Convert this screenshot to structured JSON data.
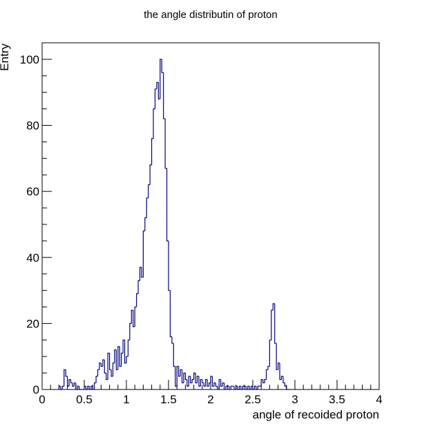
{
  "chart_data": {
    "type": "histogram",
    "title": "the angle distributin of proton",
    "xlabel": "angle of recoided proton",
    "ylabel": "Entry",
    "xlim": [
      0,
      4
    ],
    "ylim": [
      0,
      105
    ],
    "x_ticks": [
      0,
      0.5,
      1,
      1.5,
      2,
      2.5,
      3,
      3.5,
      4
    ],
    "x_tick_labels": [
      "0",
      "0.5",
      "1",
      "1.5",
      "2",
      "2.5",
      "3",
      "3.5",
      "4"
    ],
    "y_ticks": [
      0,
      20,
      40,
      60,
      80,
      100
    ],
    "y_tick_labels": [
      "0",
      "20",
      "40",
      "60",
      "80",
      "100"
    ],
    "grid": false,
    "line_color": "#000080",
    "bin_width": 0.02,
    "bins": [
      [
        0.2,
        0.22,
        1
      ],
      [
        0.22,
        0.24,
        0
      ],
      [
        0.24,
        0.26,
        1
      ],
      [
        0.26,
        0.28,
        6
      ],
      [
        0.28,
        0.3,
        4
      ],
      [
        0.3,
        0.32,
        1
      ],
      [
        0.32,
        0.34,
        3
      ],
      [
        0.34,
        0.36,
        2
      ],
      [
        0.36,
        0.38,
        1
      ],
      [
        0.38,
        0.4,
        2
      ],
      [
        0.4,
        0.42,
        0
      ],
      [
        0.42,
        0.44,
        1
      ],
      [
        0.44,
        0.46,
        0
      ],
      [
        0.46,
        0.48,
        0
      ],
      [
        0.48,
        0.5,
        0
      ],
      [
        0.5,
        0.52,
        1
      ],
      [
        0.52,
        0.54,
        0
      ],
      [
        0.54,
        0.56,
        1
      ],
      [
        0.56,
        0.58,
        0
      ],
      [
        0.58,
        0.6,
        1
      ],
      [
        0.6,
        0.62,
        0
      ],
      [
        0.62,
        0.64,
        2
      ],
      [
        0.64,
        0.66,
        4
      ],
      [
        0.66,
        0.68,
        6
      ],
      [
        0.68,
        0.7,
        8
      ],
      [
        0.7,
        0.72,
        7
      ],
      [
        0.72,
        0.74,
        9
      ],
      [
        0.74,
        0.76,
        5
      ],
      [
        0.76,
        0.78,
        3
      ],
      [
        0.78,
        0.8,
        11
      ],
      [
        0.8,
        0.82,
        6
      ],
      [
        0.82,
        0.84,
        4
      ],
      [
        0.84,
        0.86,
        8
      ],
      [
        0.86,
        0.88,
        12
      ],
      [
        0.88,
        0.9,
        6
      ],
      [
        0.9,
        0.92,
        13
      ],
      [
        0.92,
        0.94,
        7
      ],
      [
        0.94,
        0.96,
        11
      ],
      [
        0.96,
        0.98,
        15
      ],
      [
        0.98,
        1.0,
        8
      ],
      [
        1.0,
        1.02,
        10
      ],
      [
        1.02,
        1.04,
        15
      ],
      [
        1.04,
        1.06,
        20
      ],
      [
        1.06,
        1.08,
        24
      ],
      [
        1.08,
        1.1,
        19
      ],
      [
        1.1,
        1.12,
        25
      ],
      [
        1.12,
        1.14,
        29
      ],
      [
        1.14,
        1.16,
        33
      ],
      [
        1.16,
        1.18,
        37
      ],
      [
        1.18,
        1.2,
        34
      ],
      [
        1.2,
        1.22,
        48
      ],
      [
        1.22,
        1.24,
        52
      ],
      [
        1.24,
        1.26,
        58
      ],
      [
        1.26,
        1.28,
        62
      ],
      [
        1.28,
        1.3,
        68
      ],
      [
        1.3,
        1.32,
        76
      ],
      [
        1.32,
        1.34,
        85
      ],
      [
        1.34,
        1.36,
        91
      ],
      [
        1.36,
        1.38,
        93
      ],
      [
        1.38,
        1.4,
        88
      ],
      [
        1.4,
        1.42,
        100
      ],
      [
        1.42,
        1.44,
        96
      ],
      [
        1.44,
        1.46,
        82
      ],
      [
        1.46,
        1.48,
        67
      ],
      [
        1.48,
        1.5,
        45
      ],
      [
        1.5,
        1.52,
        30
      ],
      [
        1.52,
        1.54,
        16
      ],
      [
        1.54,
        1.56,
        14
      ],
      [
        1.56,
        1.58,
        7
      ],
      [
        1.58,
        1.6,
        1
      ],
      [
        1.6,
        1.62,
        7
      ],
      [
        1.62,
        1.64,
        4
      ],
      [
        1.64,
        1.66,
        6
      ],
      [
        1.66,
        1.68,
        2
      ],
      [
        1.68,
        1.7,
        5
      ],
      [
        1.7,
        1.72,
        3
      ],
      [
        1.72,
        1.74,
        1
      ],
      [
        1.74,
        1.76,
        4
      ],
      [
        1.76,
        1.78,
        2
      ],
      [
        1.78,
        1.8,
        3
      ],
      [
        1.8,
        1.82,
        5
      ],
      [
        1.82,
        1.84,
        2
      ],
      [
        1.84,
        1.86,
        4
      ],
      [
        1.86,
        1.88,
        1
      ],
      [
        1.88,
        1.9,
        3
      ],
      [
        1.9,
        1.92,
        2
      ],
      [
        1.92,
        1.94,
        1
      ],
      [
        1.94,
        1.96,
        3
      ],
      [
        1.96,
        1.98,
        1
      ],
      [
        1.98,
        2.0,
        2
      ],
      [
        2.0,
        2.02,
        4
      ],
      [
        2.02,
        2.04,
        1
      ],
      [
        2.04,
        2.06,
        2
      ],
      [
        2.06,
        2.08,
        1
      ],
      [
        2.08,
        2.1,
        0
      ],
      [
        2.1,
        2.12,
        3
      ],
      [
        2.12,
        2.14,
        1
      ],
      [
        2.14,
        2.16,
        2
      ],
      [
        2.16,
        2.18,
        0
      ],
      [
        2.18,
        2.2,
        1
      ],
      [
        2.2,
        2.22,
        1
      ],
      [
        2.22,
        2.24,
        0
      ],
      [
        2.24,
        2.26,
        1
      ],
      [
        2.26,
        2.28,
        1
      ],
      [
        2.28,
        2.3,
        0
      ],
      [
        2.3,
        2.32,
        1
      ],
      [
        2.32,
        2.34,
        0
      ],
      [
        2.34,
        2.36,
        1
      ],
      [
        2.36,
        2.38,
        0
      ],
      [
        2.38,
        2.4,
        1
      ],
      [
        2.4,
        2.42,
        1
      ],
      [
        2.42,
        2.44,
        0
      ],
      [
        2.44,
        2.46,
        1
      ],
      [
        2.46,
        2.48,
        0
      ],
      [
        2.48,
        2.5,
        1
      ],
      [
        2.5,
        2.52,
        0
      ],
      [
        2.52,
        2.54,
        1
      ],
      [
        2.54,
        2.56,
        0
      ],
      [
        2.56,
        2.58,
        1
      ],
      [
        2.58,
        2.6,
        1
      ],
      [
        2.6,
        2.62,
        3
      ],
      [
        2.62,
        2.64,
        2
      ],
      [
        2.64,
        2.66,
        3
      ],
      [
        2.66,
        2.68,
        6
      ],
      [
        2.68,
        2.7,
        7
      ],
      [
        2.7,
        2.72,
        15
      ],
      [
        2.72,
        2.74,
        24
      ],
      [
        2.74,
        2.76,
        26
      ],
      [
        2.76,
        2.78,
        14
      ],
      [
        2.78,
        2.8,
        6
      ],
      [
        2.8,
        2.82,
        8
      ],
      [
        2.82,
        2.84,
        3
      ],
      [
        2.84,
        2.86,
        4
      ],
      [
        2.86,
        2.88,
        2
      ],
      [
        2.88,
        2.9,
        1
      ],
      [
        2.9,
        2.92,
        0
      ],
      [
        2.92,
        2.94,
        0
      ]
    ]
  }
}
